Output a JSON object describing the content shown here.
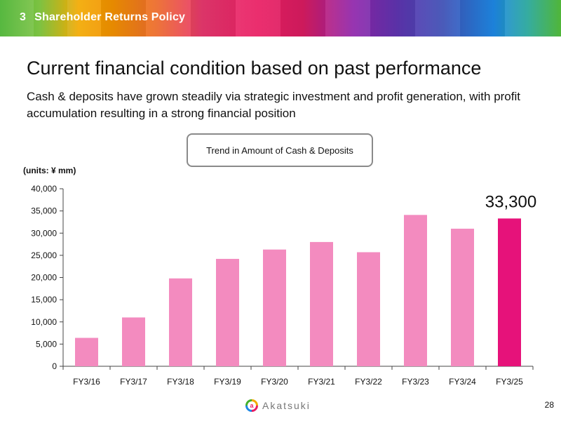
{
  "banner": {
    "section_number": "3",
    "section_title": "Shareholder Returns Policy"
  },
  "headline": "Current financial condition based on past performance",
  "subtitle": "Cash & deposits have grown steadily via strategic investment and profit generation, with profit accumulation resulting in a strong financial position",
  "trend_box_label": "Trend in Amount of Cash & Deposits",
  "footer": {
    "logo_glyph": "a",
    "logo_text": "Akatsuki",
    "page_number": "28"
  },
  "colors": {
    "bar": "#f38bbf",
    "bar_highlight": "#e6127a",
    "axis": "#444444"
  },
  "chart_data": {
    "type": "bar",
    "title": "Trend in Amount of Cash & Deposits",
    "units_label": "(units: ¥ mm)",
    "categories": [
      "FY3/16",
      "FY3/17",
      "FY3/18",
      "FY3/19",
      "FY3/20",
      "FY3/21",
      "FY3/22",
      "FY3/23",
      "FY3/24",
      "FY3/25"
    ],
    "values": [
      6400,
      11000,
      19800,
      24200,
      26300,
      28000,
      25700,
      34100,
      31000,
      33300
    ],
    "highlight_index": 9,
    "highlight_label": "33,300",
    "ylim": [
      0,
      40000
    ],
    "yticks": [
      0,
      5000,
      10000,
      15000,
      20000,
      25000,
      30000,
      35000,
      40000
    ],
    "ytick_labels": [
      "0",
      "5,000",
      "10,000",
      "15,000",
      "20,000",
      "25,000",
      "30,000",
      "35,000",
      "40,000"
    ],
    "grid": false,
    "xlabel": "",
    "ylabel": ""
  }
}
